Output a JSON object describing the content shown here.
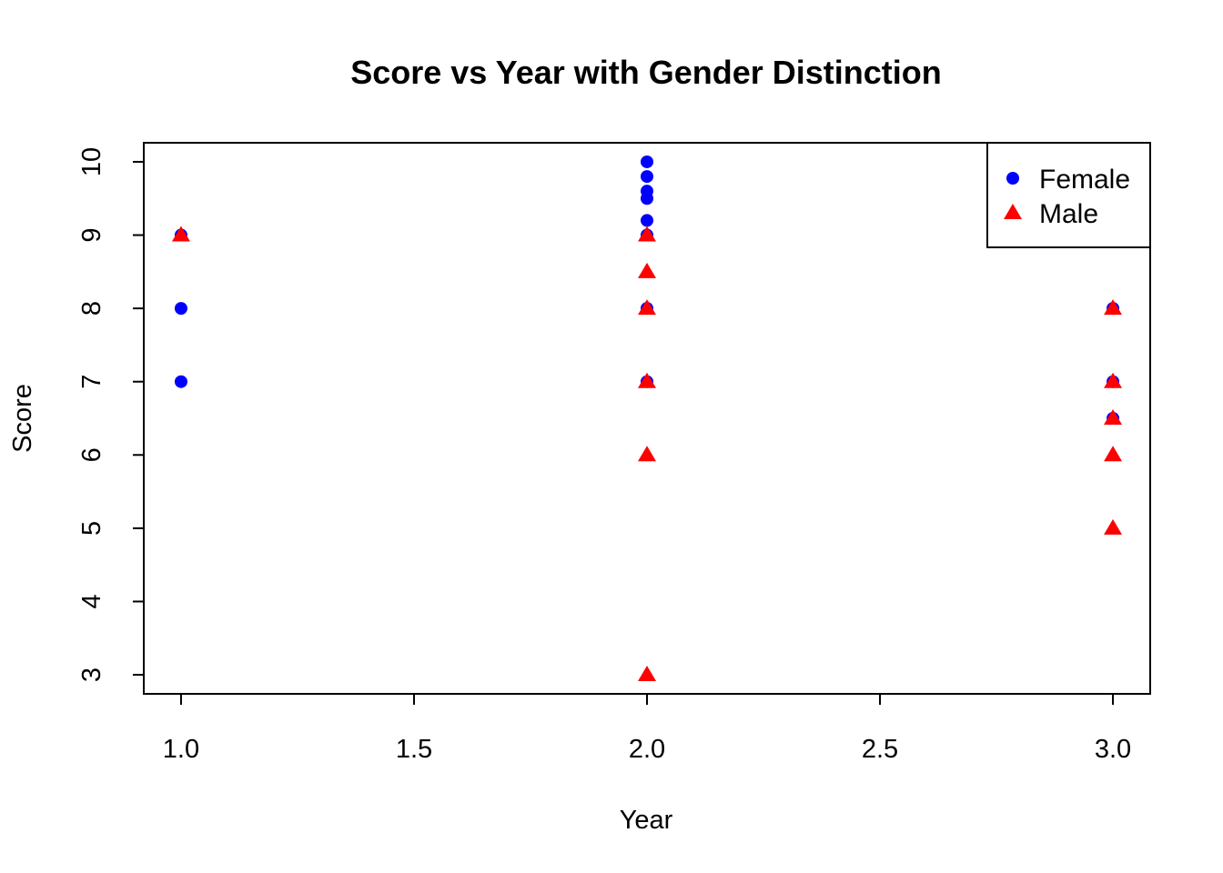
{
  "chart_data": {
    "type": "scatter",
    "title": "Score vs Year with Gender Distinction",
    "xlabel": "Year",
    "ylabel": "Score",
    "xlim": [
      0.92,
      3.08
    ],
    "ylim": [
      2.74,
      10.26
    ],
    "x_ticks": [
      "1.0",
      "1.5",
      "2.0",
      "2.5",
      "3.0"
    ],
    "x_tick_values": [
      1.0,
      1.5,
      2.0,
      2.5,
      3.0
    ],
    "y_ticks": [
      "3",
      "4",
      "5",
      "6",
      "7",
      "8",
      "9",
      "10"
    ],
    "y_tick_values": [
      3,
      4,
      5,
      6,
      7,
      8,
      9,
      10
    ],
    "grid": false,
    "legend_position": "top-right",
    "series": [
      {
        "name": "Female",
        "color": "#0000ff",
        "marker": "circle",
        "points": [
          {
            "x": 1,
            "y": 9
          },
          {
            "x": 1,
            "y": 8
          },
          {
            "x": 1,
            "y": 7
          },
          {
            "x": 2,
            "y": 10
          },
          {
            "x": 2,
            "y": 9.8
          },
          {
            "x": 2,
            "y": 9.6
          },
          {
            "x": 2,
            "y": 9.5
          },
          {
            "x": 2,
            "y": 9.2
          },
          {
            "x": 2,
            "y": 9
          },
          {
            "x": 2,
            "y": 8
          },
          {
            "x": 2,
            "y": 7
          },
          {
            "x": 3,
            "y": 8
          },
          {
            "x": 3,
            "y": 7
          },
          {
            "x": 3,
            "y": 6.5
          }
        ]
      },
      {
        "name": "Male",
        "color": "#ff0000",
        "marker": "triangle",
        "points": [
          {
            "x": 1,
            "y": 9
          },
          {
            "x": 2,
            "y": 9
          },
          {
            "x": 2,
            "y": 8.5
          },
          {
            "x": 2,
            "y": 8
          },
          {
            "x": 2,
            "y": 7
          },
          {
            "x": 2,
            "y": 6
          },
          {
            "x": 2,
            "y": 3
          },
          {
            "x": 3,
            "y": 8
          },
          {
            "x": 3,
            "y": 7
          },
          {
            "x": 3,
            "y": 6.5
          },
          {
            "x": 3,
            "y": 6
          },
          {
            "x": 3,
            "y": 5
          }
        ]
      }
    ]
  }
}
